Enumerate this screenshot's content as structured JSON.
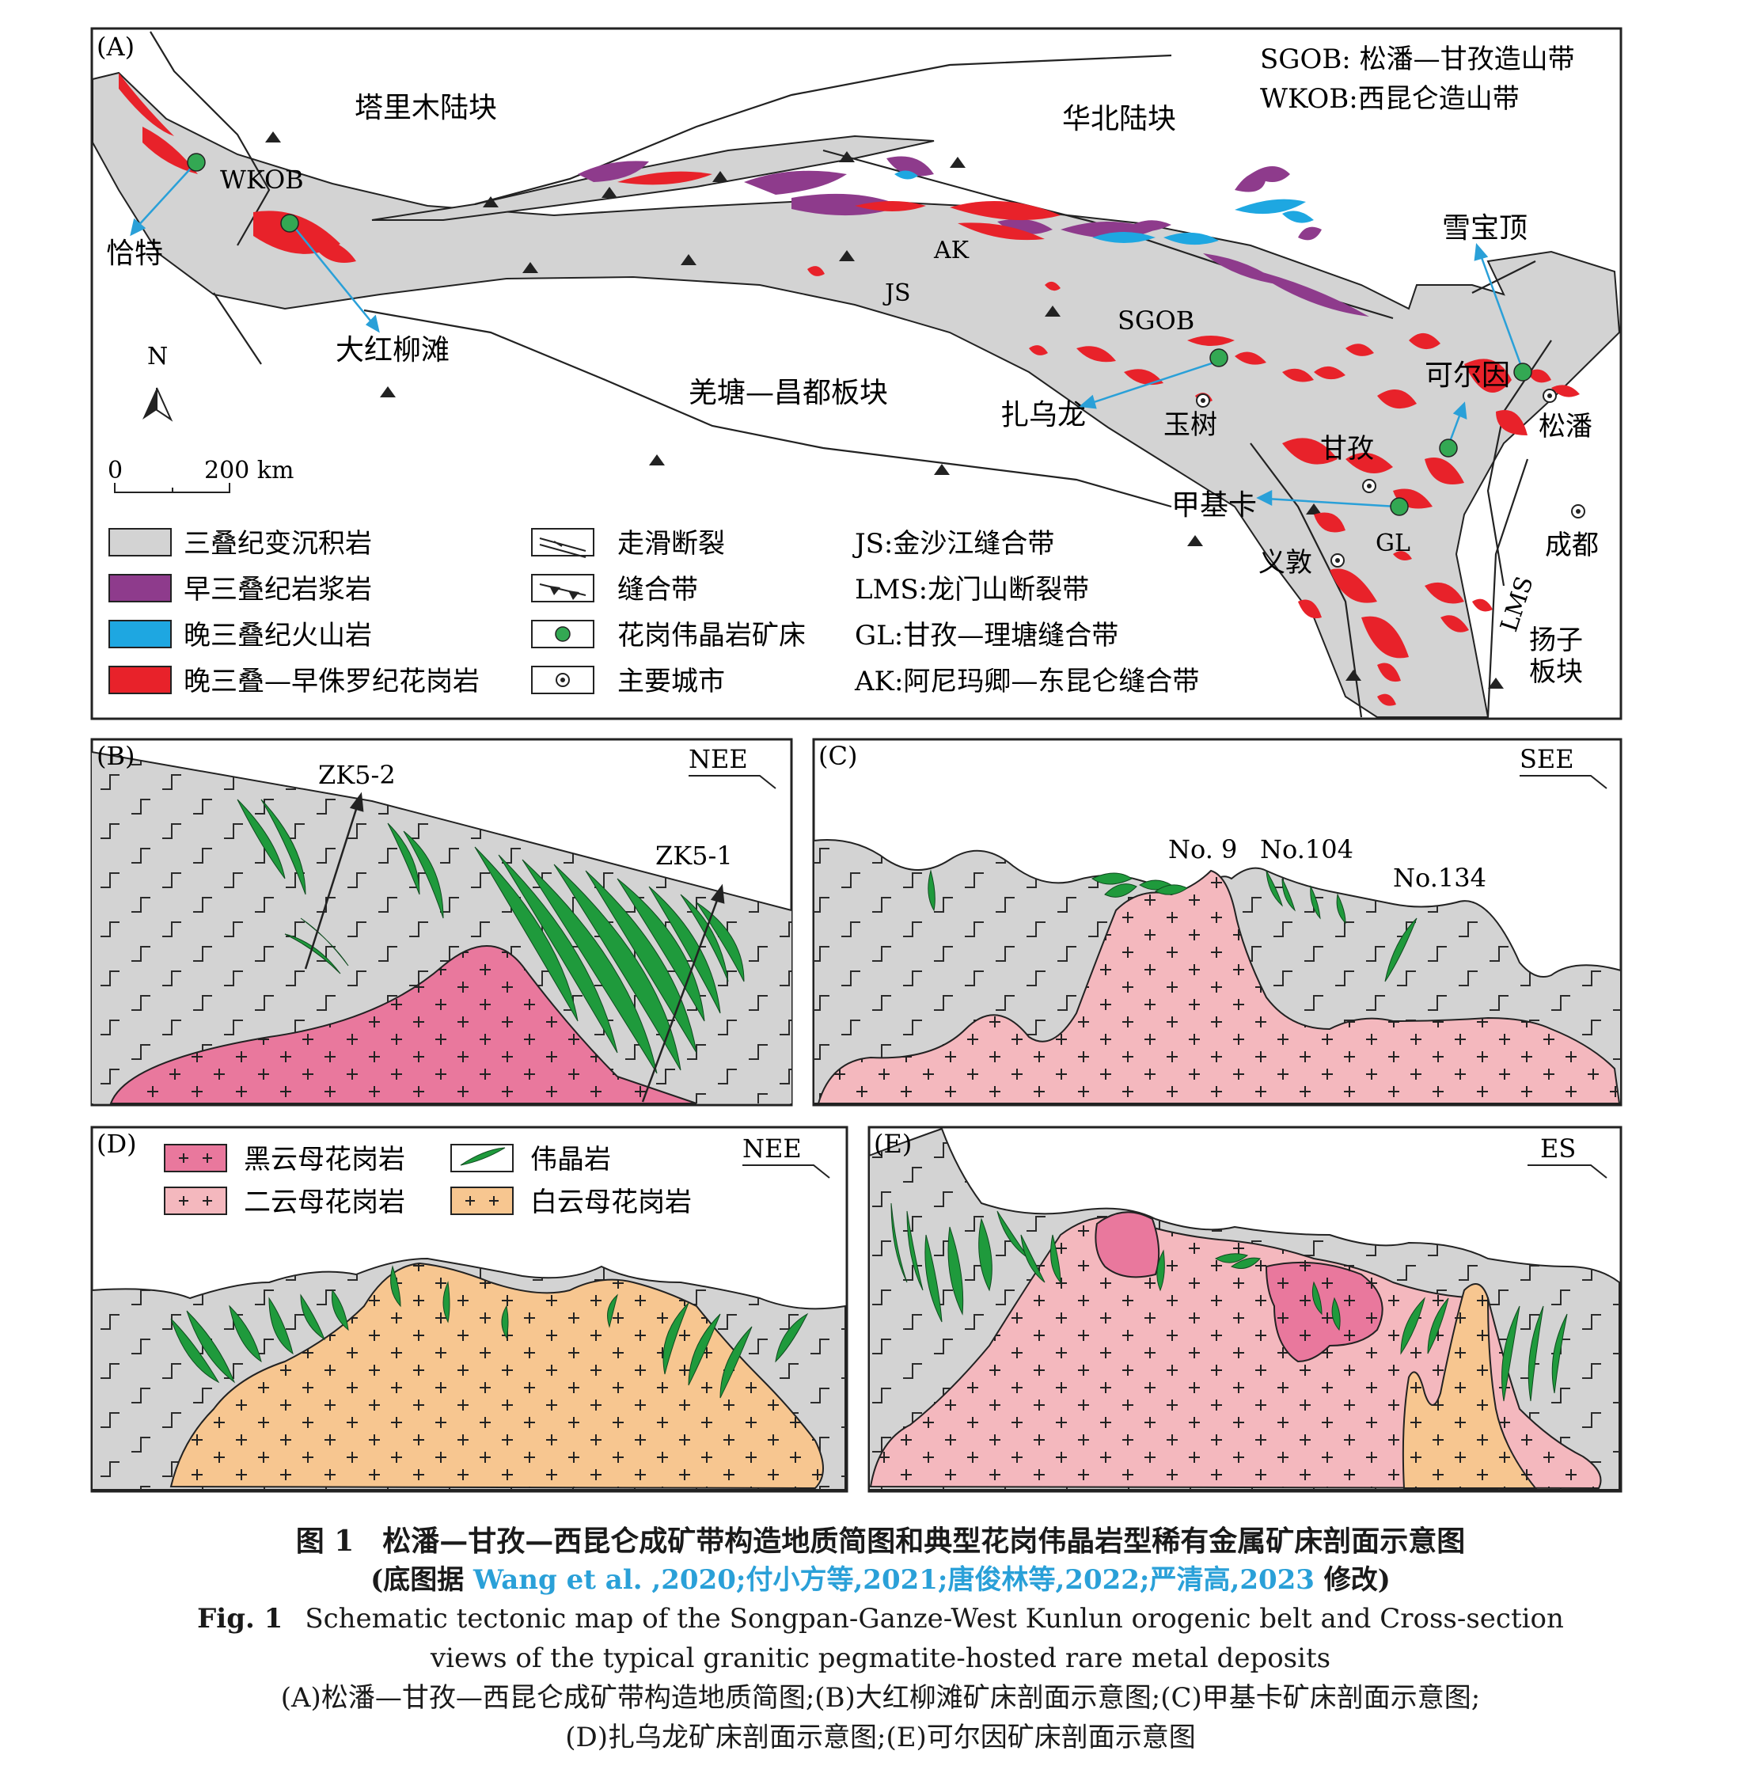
{
  "panelA": {
    "tag": "(A)",
    "abbrev": [
      {
        "abbr": "SGOB",
        "name": "松潘—甘孜造山带",
        "text": "SGOB: 松潘—甘孜造山带"
      },
      {
        "abbr": "WKOB",
        "name": "西昆仑造山带",
        "text": "WKOB:西昆仑造山带"
      }
    ],
    "regions": {
      "tarim": "塔里木陆块",
      "north_china": "华北陆块",
      "qiangtang": "羌塘—昌都板块",
      "yangtze": [
        "扬子",
        "板块"
      ]
    },
    "belts": {
      "wkob": "WKOB",
      "sgob": "SGOB",
      "js": "JS",
      "ak": "AK",
      "gl": "GL",
      "lms": "LMS"
    },
    "deposits": [
      "恰特",
      "大红柳滩",
      "扎乌龙",
      "甲基卡",
      "可尔因",
      "雪宝顶"
    ],
    "cities": [
      "玉树",
      "甘孜",
      "义敦",
      "松潘",
      "成都"
    ],
    "north": "N",
    "scale": {
      "zero": "0",
      "end": "200 km"
    },
    "legend": [
      {
        "label": "三叠纪变沉积岩",
        "color": "#d3d3d3"
      },
      {
        "label": "早三叠纪岩浆岩",
        "color": "#8e3b8c"
      },
      {
        "label": "晚三叠纪火山岩",
        "color": "#1ea7e1"
      },
      {
        "label": "晚三叠—早侏罗纪花岗岩",
        "color": "#e8222a"
      },
      {
        "label": "走滑断裂"
      },
      {
        "label": "缝合带"
      },
      {
        "label": "花岗伟晶岩矿床"
      },
      {
        "label": "主要城市"
      }
    ],
    "legend_abbrev": [
      "JS:金沙江缝合带",
      "LMS:龙门山断裂带",
      "GL:甘孜—理塘缝合带",
      "AK:阿尼玛卿—东昆仑缝合带"
    ]
  },
  "panelB": {
    "tag": "(B)",
    "direction": "NEE",
    "holes": [
      "ZK5-2",
      "ZK5-1"
    ]
  },
  "panelC": {
    "tag": "(C)",
    "direction": "SEE",
    "veins": [
      "No. 9",
      "No.104",
      "No.134"
    ]
  },
  "panelD": {
    "tag": "(D)",
    "direction": "NEE",
    "legend": [
      {
        "label": "黑云母花岗岩",
        "color": "#e9789d"
      },
      {
        "label": "伟晶岩",
        "color": "#1f9a3c"
      },
      {
        "label": "二云母花岗岩",
        "color": "#f4b8be"
      },
      {
        "label": "白云母花岗岩",
        "color": "#f7c690"
      }
    ]
  },
  "panelE": {
    "tag": "(E)",
    "direction": "ES"
  },
  "caption": {
    "zh_title": "图 1　松潘—甘孜—西昆仑成矿带构造地质简图和典型花岗伟晶岩型稀有金属矿床剖面示意图",
    "zh_src_open": "(底图据 ",
    "zh_src_refs": "Wang et al. ,2020;付小方等,2021;唐俊林等,2022;严清高,2023",
    "zh_src_close": " 修改)",
    "en_label": "Fig. 1",
    "en_line1": "Schematic tectonic map of the Songpan-Ganze-West Kunlun orogenic belt and Cross-section",
    "en_line2": "views of the typical granitic pegmatite-hosted rare metal deposits",
    "sub_line1": "(A)松潘—甘孜—西昆仑成矿带构造地质简图;(B)大红柳滩矿床剖面示意图;(C)甲基卡矿床剖面示意图;",
    "sub_line2": "(D)扎乌龙矿床剖面示意图;(E)可尔因矿床剖面示意图"
  }
}
